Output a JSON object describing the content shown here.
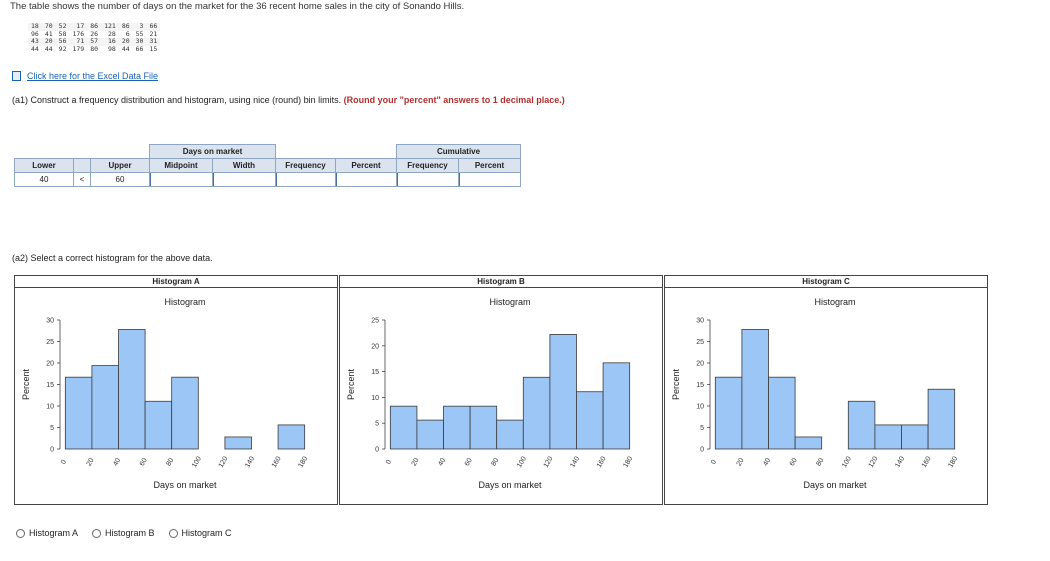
{
  "intro_text": "The table shows the number of days on the market for the 36 recent home sales in the city of Sonando Hills.",
  "raw_data": [
    [
      "18",
      "70",
      "52",
      "17",
      "86",
      "121",
      "86",
      "3",
      "66"
    ],
    [
      "96",
      "41",
      "58",
      "176",
      "26",
      "28",
      "6",
      "55",
      "21"
    ],
    [
      "43",
      "20",
      "56",
      "71",
      "57",
      "16",
      "20",
      "30",
      "31"
    ],
    [
      "44",
      "44",
      "92",
      "179",
      "80",
      "98",
      "44",
      "66",
      "15"
    ]
  ],
  "excel_link": "Click here for the Excel Data File",
  "question_a1": {
    "text": "(a1) Construct a frequency distribution and histogram, using nice (round) bin limits.",
    "note": "(Round your \"percent\" answers to 1 decimal place.)"
  },
  "freq_table": {
    "group_days": "Days on market",
    "group_cumulative": "Cumulative",
    "headers": {
      "lower": "Lower",
      "upper": "Upper",
      "midpoint": "Midpoint",
      "width": "Width",
      "frequency": "Frequency",
      "percent": "Percent",
      "cum_frequency": "Frequency",
      "cum_percent": "Percent"
    },
    "row": {
      "lower": "40",
      "lt": "<",
      "upper": "60"
    }
  },
  "question_a2": "(a2) Select a correct histogram for the above data.",
  "histograms": [
    {
      "title": "Histogram A",
      "chart_data": {
        "type": "bar",
        "title": "Histogram",
        "xlabel": "Days on market",
        "ylabel": "Percent",
        "x_ticks": [
          "0",
          "20",
          "40",
          "60",
          "80",
          "100",
          "120",
          "140",
          "160",
          "180"
        ],
        "bin_edges": [
          0,
          20,
          40,
          60,
          80,
          100,
          120,
          140,
          160,
          180
        ],
        "values": [
          16.7,
          19.4,
          27.8,
          11.1,
          16.7,
          0,
          2.8,
          0,
          5.6
        ],
        "ylim": [
          0,
          30
        ],
        "y_ticks": [
          "0",
          "5",
          "10",
          "15",
          "20",
          "25",
          "30"
        ]
      }
    },
    {
      "title": "Histogram B",
      "chart_data": {
        "type": "bar",
        "title": "Histogram",
        "xlabel": "Days on market",
        "ylabel": "Percent",
        "x_ticks": [
          "0",
          "20",
          "40",
          "60",
          "80",
          "100",
          "120",
          "140",
          "160",
          "180"
        ],
        "bin_edges": [
          0,
          20,
          40,
          60,
          80,
          100,
          120,
          140,
          160,
          180
        ],
        "values": [
          8.3,
          5.6,
          8.3,
          8.3,
          5.6,
          13.9,
          22.2,
          11.1,
          16.7
        ],
        "ylim": [
          0,
          25
        ],
        "y_ticks": [
          "0",
          "5",
          "10",
          "15",
          "20",
          "25"
        ]
      }
    },
    {
      "title": "Histogram C",
      "chart_data": {
        "type": "bar",
        "title": "Histogram",
        "xlabel": "Days on market",
        "ylabel": "Percent",
        "x_ticks": [
          "0",
          "20",
          "40",
          "60",
          "80",
          "100",
          "120",
          "140",
          "160",
          "180"
        ],
        "bin_edges": [
          0,
          20,
          40,
          60,
          80,
          100,
          120,
          140,
          160,
          180
        ],
        "values": [
          16.7,
          27.8,
          16.7,
          2.8,
          0,
          11.1,
          5.6,
          5.6,
          13.9
        ],
        "ylim": [
          0,
          30
        ],
        "y_ticks": [
          "0",
          "5",
          "10",
          "15",
          "20",
          "25",
          "30"
        ]
      }
    }
  ],
  "options": [
    "Histogram A",
    "Histogram B",
    "Histogram C"
  ],
  "colors": {
    "bar_fill": "#9cc6f5",
    "bar_stroke": "#3a3a3a",
    "header_bg": "#dbe3ee",
    "link": "#1b62b6",
    "note": "#b03030"
  }
}
